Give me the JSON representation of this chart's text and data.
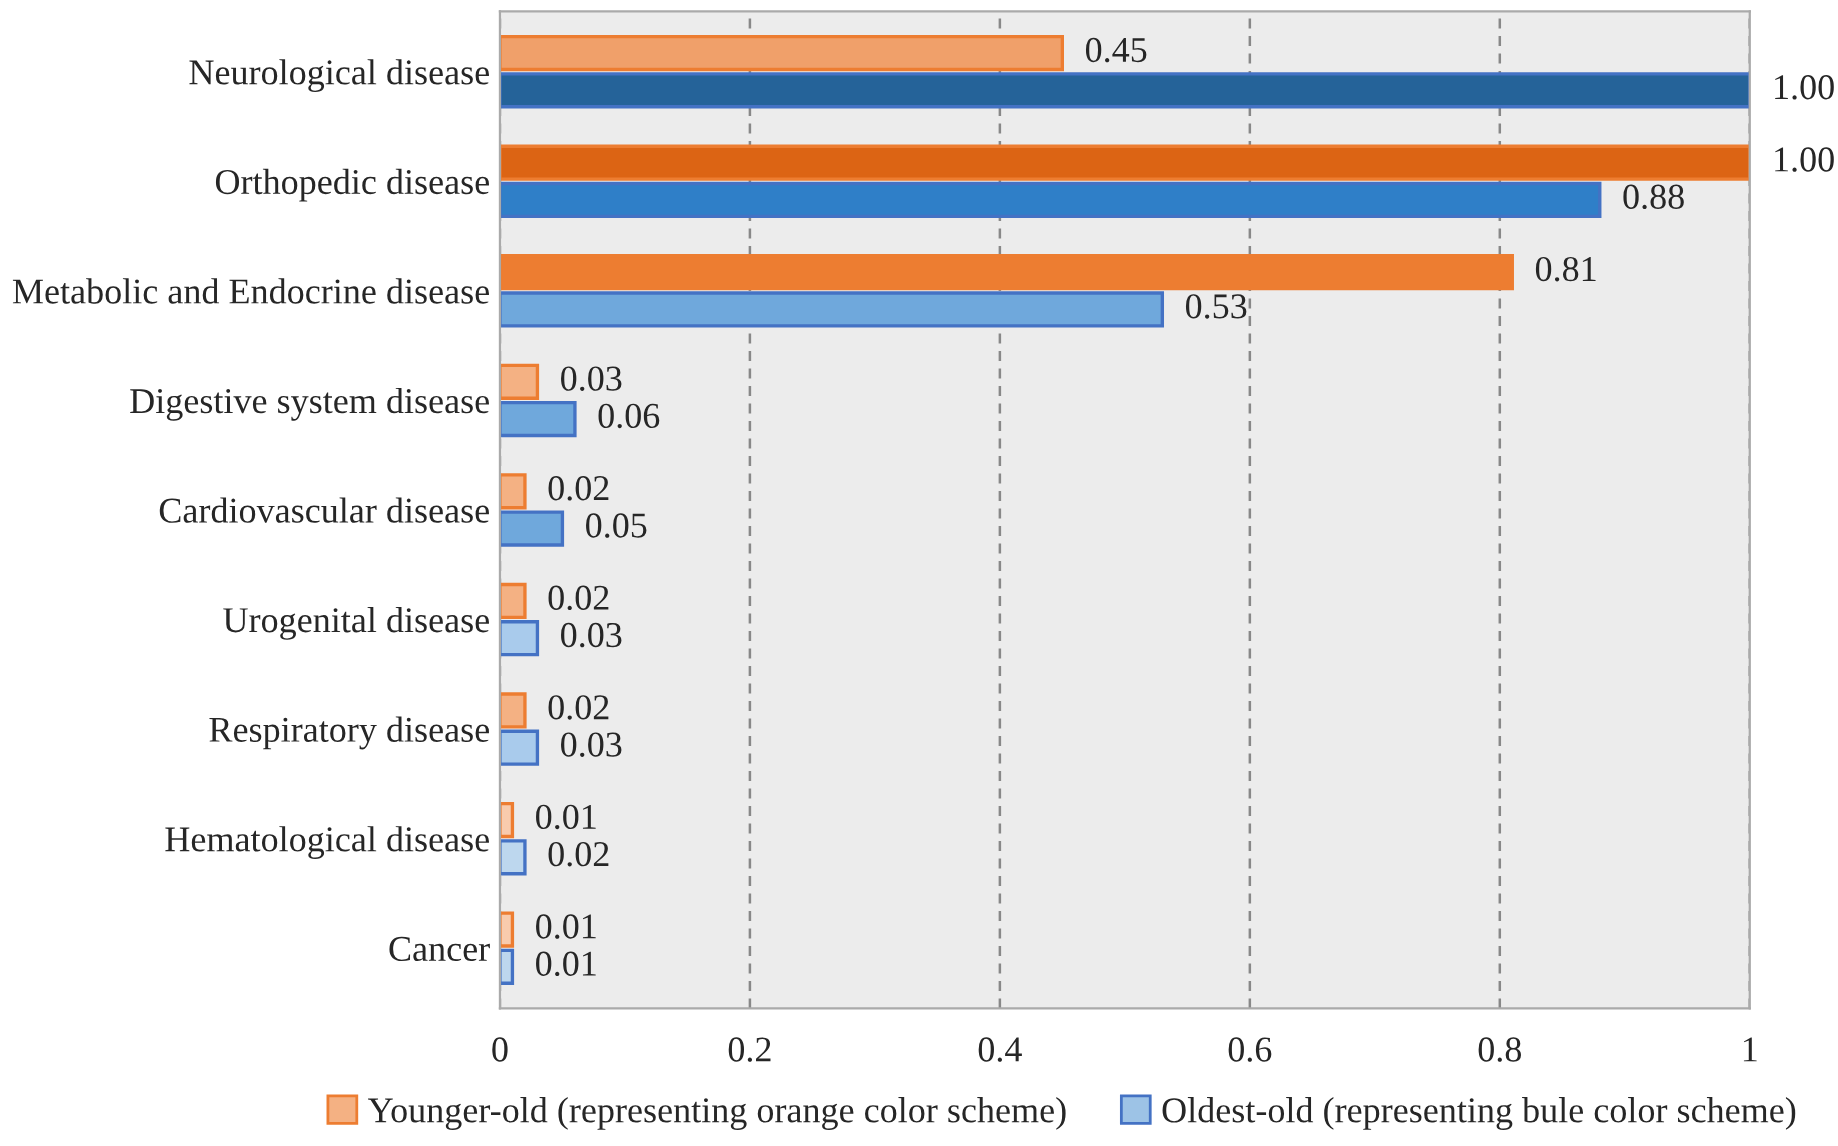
{
  "chart_data": {
    "type": "bar",
    "orientation": "horizontal",
    "categories": [
      "Neurological disease",
      "Orthopedic disease",
      "Metabolic and Endocrine disease",
      "Digestive system disease",
      "Cardiovascular disease",
      "Urogenital disease",
      "Respiratory disease",
      "Hematological disease",
      "Cancer"
    ],
    "series": [
      {
        "name": "Younger-old (representing orange color scheme)",
        "color": "#f4b183",
        "colors": [
          "#f0a06a",
          "#dc6414",
          "#ed7d31",
          "#f4b183",
          "#f4b183",
          "#f4b183",
          "#f4b183",
          "#f8cbad",
          "#f8cbad"
        ],
        "values": [
          0.45,
          1.0,
          0.81,
          0.03,
          0.02,
          0.02,
          0.02,
          0.01,
          0.01
        ],
        "value_labels": [
          "0.45",
          "1.00",
          "0.81",
          "0.03",
          "0.02",
          "0.02",
          "0.02",
          "0.01",
          "0.01"
        ]
      },
      {
        "name": "Oldest-old (representing bule color scheme)",
        "color": "#9dc3e6",
        "colors": [
          "#256399",
          "#2f7fc8",
          "#6fa8dc",
          "#6fa8dc",
          "#6fa8dc",
          "#a9cbec",
          "#a9cbec",
          "#bdd7ee",
          "#bdd7ee"
        ],
        "values": [
          1.0,
          0.88,
          0.53,
          0.06,
          0.05,
          0.03,
          0.03,
          0.02,
          0.01
        ],
        "value_labels": [
          "1.00",
          "0.88",
          "0.53",
          "0.06",
          "0.05",
          "0.03",
          "0.03",
          "0.02",
          "0.01"
        ]
      }
    ],
    "xlim": [
      0,
      1
    ],
    "xticks": [
      0,
      {
        "value": 0.2,
        "label": "0.2"
      },
      {
        "value": 0.4,
        "label": "0.4"
      },
      {
        "value": 0.6,
        "label": "0.6"
      },
      {
        "value": 0.8,
        "label": "0.8"
      },
      1
    ],
    "grid": "x",
    "legend": "bottom"
  }
}
